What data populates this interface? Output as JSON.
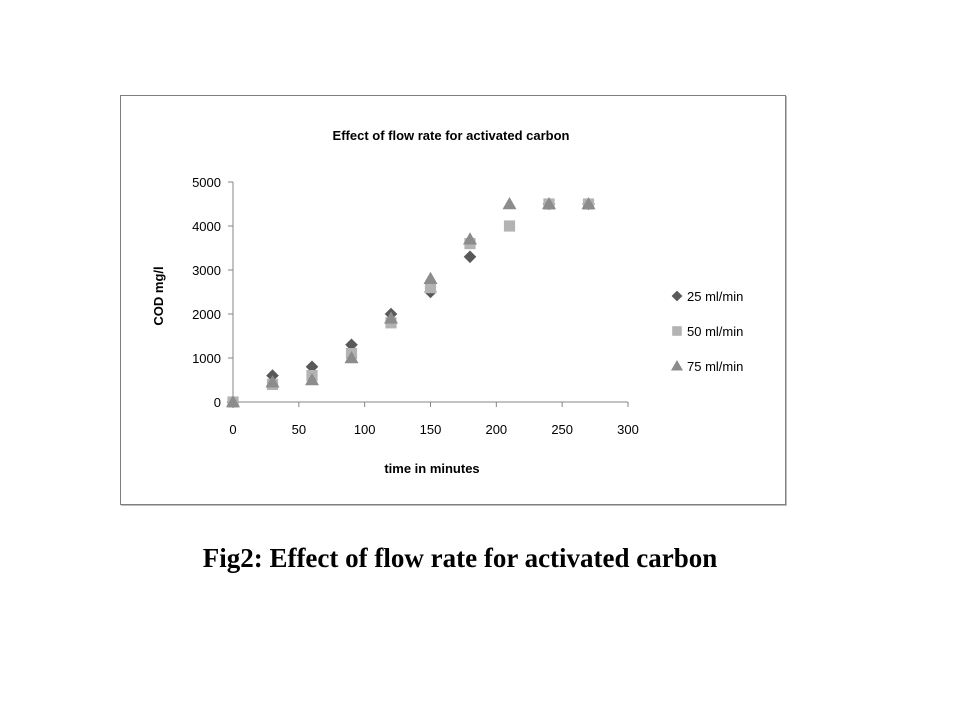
{
  "caption": "Fig2: Effect of flow rate for activated carbon",
  "chart_data": {
    "type": "scatter",
    "title": "Effect of flow rate for activated carbon",
    "xlabel": "time in minutes",
    "ylabel": "COD mg/l",
    "xlim": [
      0,
      300
    ],
    "ylim": [
      0,
      5000
    ],
    "xticks": [
      0,
      50,
      100,
      150,
      200,
      250,
      300
    ],
    "yticks": [
      0,
      1000,
      2000,
      3000,
      4000,
      5000
    ],
    "grid": false,
    "legend_position": "right",
    "series": [
      {
        "name": "25 ml/min",
        "marker": "diamond",
        "color": "#595959",
        "x": [
          0,
          30,
          60,
          90,
          120,
          150,
          180,
          240,
          270
        ],
        "y": [
          0,
          600,
          800,
          1300,
          2000,
          2500,
          3300,
          4500,
          4500
        ]
      },
      {
        "name": "50 ml/min",
        "marker": "square",
        "color": "#b3b3b3",
        "x": [
          0,
          30,
          60,
          90,
          120,
          150,
          180,
          210,
          240,
          270
        ],
        "y": [
          0,
          400,
          600,
          1100,
          1800,
          2600,
          3600,
          4000,
          4500,
          4500
        ]
      },
      {
        "name": "75 ml/min",
        "marker": "triangle",
        "color": "#8c8c8c",
        "x": [
          0,
          30,
          60,
          90,
          120,
          150,
          180,
          210,
          240,
          270
        ],
        "y": [
          0,
          450,
          500,
          1000,
          1900,
          2800,
          3700,
          4500,
          4500,
          4500
        ]
      }
    ]
  }
}
